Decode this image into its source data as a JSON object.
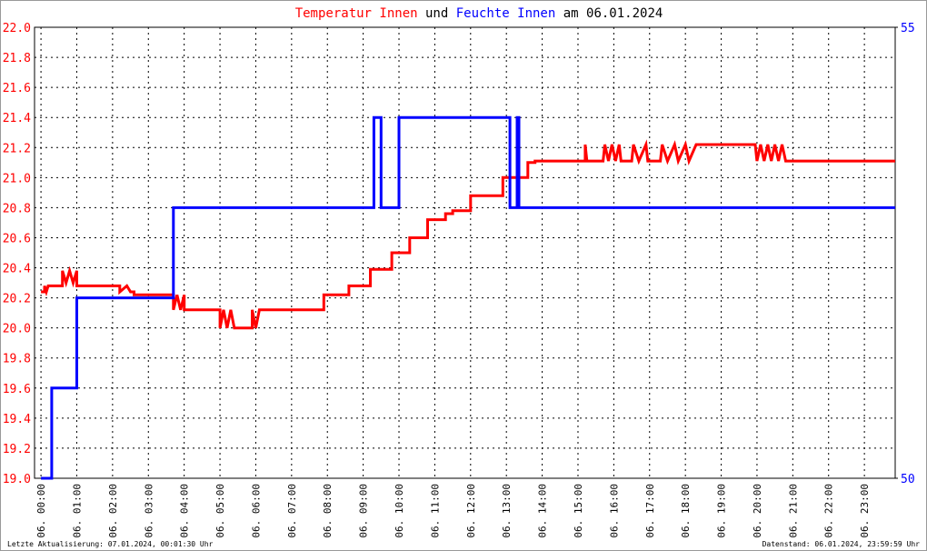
{
  "chart_data": {
    "type": "line",
    "title_connector": "und",
    "title_date": "am 06.01.2024",
    "footer_left": "Letzte Aktualisierung: 07.01.2024, 00:01:30 Uhr",
    "footer_right": "Datenstand: 06.01.2024, 23:59:59 Uhr",
    "grid": true,
    "xlim": [
      -0.18,
      23.86
    ],
    "xticks": [
      {
        "value": 0,
        "label": "06. 00:00"
      },
      {
        "value": 1,
        "label": "06. 01:00"
      },
      {
        "value": 2,
        "label": "06. 02:00"
      },
      {
        "value": 3,
        "label": "06. 03:00"
      },
      {
        "value": 4,
        "label": "06. 04:00"
      },
      {
        "value": 5,
        "label": "06. 05:00"
      },
      {
        "value": 6,
        "label": "06. 06:00"
      },
      {
        "value": 7,
        "label": "06. 07:00"
      },
      {
        "value": 8,
        "label": "06. 08:00"
      },
      {
        "value": 9,
        "label": "06. 09:00"
      },
      {
        "value": 10,
        "label": "06. 10:00"
      },
      {
        "value": 11,
        "label": "06. 11:00"
      },
      {
        "value": 12,
        "label": "06. 12:00"
      },
      {
        "value": 13,
        "label": "06. 13:00"
      },
      {
        "value": 14,
        "label": "06. 14:00"
      },
      {
        "value": 15,
        "label": "06. 15:00"
      },
      {
        "value": 16,
        "label": "06. 16:00"
      },
      {
        "value": 17,
        "label": "06. 17:00"
      },
      {
        "value": 18,
        "label": "06. 18:00"
      },
      {
        "value": 19,
        "label": "06. 19:00"
      },
      {
        "value": 20,
        "label": "06. 20:00"
      },
      {
        "value": 21,
        "label": "06. 21:00"
      },
      {
        "value": 22,
        "label": "06. 22:00"
      },
      {
        "value": 23,
        "label": "06. 23:00"
      }
    ],
    "ylim": [
      19,
      22
    ],
    "yticks": [
      {
        "value": 19,
        "label": "19.0"
      },
      19.2,
      19.4,
      19.6,
      19.8,
      {
        "value": 20,
        "label": "20.0"
      },
      20.2,
      20.4,
      20.6,
      20.8,
      {
        "value": 21,
        "label": "21.0"
      },
      21.2,
      21.4,
      21.6,
      21.8,
      {
        "value": 22,
        "label": "22.0"
      }
    ],
    "y2lim": [
      50,
      55
    ],
    "y2ticks": [
      50,
      55
    ],
    "series": [
      {
        "name": "Temperatur Innen",
        "color": "#ff0000",
        "x": [
          0,
          0.1,
          0.1,
          0.15,
          0.2,
          0.6,
          0.6,
          0.7,
          0.8,
          0.9,
          1.0,
          1.0,
          2.2,
          2.2,
          2.4,
          2.5,
          2.6,
          2.6,
          3.7,
          3.7,
          3.8,
          3.9,
          4.0,
          4.0,
          5.0,
          5.0,
          5.1,
          5.2,
          5.3,
          5.4,
          5.9,
          5.9,
          6.0,
          6.1,
          7.9,
          7.9,
          8.6,
          8.6,
          9.2,
          9.2,
          9.8,
          9.8,
          10.3,
          10.3,
          10.8,
          10.8,
          11.3,
          11.3,
          11.5,
          11.5,
          12.0,
          12.0,
          12.9,
          12.9,
          13.6,
          13.6,
          13.8,
          13.8,
          15.2,
          15.2,
          15.25,
          15.7,
          15.75,
          15.85,
          15.95,
          16.05,
          16.15,
          16.2,
          16.5,
          16.55,
          16.7,
          16.9,
          16.95,
          17.3,
          17.35,
          17.5,
          17.7,
          17.8,
          18.0,
          18.1,
          18.3,
          19.95,
          20.0,
          20.1,
          20.2,
          20.3,
          20.4,
          20.5,
          20.6,
          20.7,
          20.8,
          23.86
        ],
        "values": [
          20.24,
          20.24,
          20.28,
          20.24,
          20.28,
          20.28,
          20.38,
          20.3,
          20.38,
          20.3,
          20.38,
          20.28,
          20.28,
          20.24,
          20.28,
          20.24,
          20.24,
          20.22,
          20.22,
          20.12,
          20.22,
          20.12,
          20.22,
          20.12,
          20.12,
          20.0,
          20.12,
          20.0,
          20.12,
          20.0,
          20.0,
          20.12,
          20.0,
          20.12,
          20.12,
          20.22,
          20.22,
          20.28,
          20.28,
          20.39,
          20.39,
          20.5,
          20.5,
          20.6,
          20.6,
          20.72,
          20.72,
          20.76,
          20.76,
          20.78,
          20.78,
          20.88,
          20.88,
          21.0,
          21.0,
          21.1,
          21.1,
          21.11,
          21.11,
          21.22,
          21.11,
          21.11,
          21.22,
          21.11,
          21.22,
          21.11,
          21.22,
          21.11,
          21.11,
          21.22,
          21.11,
          21.22,
          21.11,
          21.11,
          21.22,
          21.11,
          21.22,
          21.11,
          21.22,
          21.11,
          21.22,
          21.22,
          21.11,
          21.22,
          21.11,
          21.22,
          21.11,
          21.22,
          21.11,
          21.22,
          21.11,
          21.11
        ]
      },
      {
        "name": "Feuchte Innen",
        "color": "#0000ff",
        "axis": "y2",
        "x": [
          0,
          0.3,
          0.3,
          1.0,
          1.0,
          3.7,
          3.7,
          9.3,
          9.3,
          9.5,
          9.5,
          10.0,
          10.0,
          13.1,
          13.1,
          13.3,
          13.3,
          13.35,
          13.35,
          23.86
        ],
        "values": [
          50,
          50,
          51,
          51,
          52,
          52,
          53,
          53,
          54,
          54,
          53,
          53,
          54,
          54,
          53,
          53,
          54,
          54,
          53,
          53
        ]
      }
    ]
  }
}
